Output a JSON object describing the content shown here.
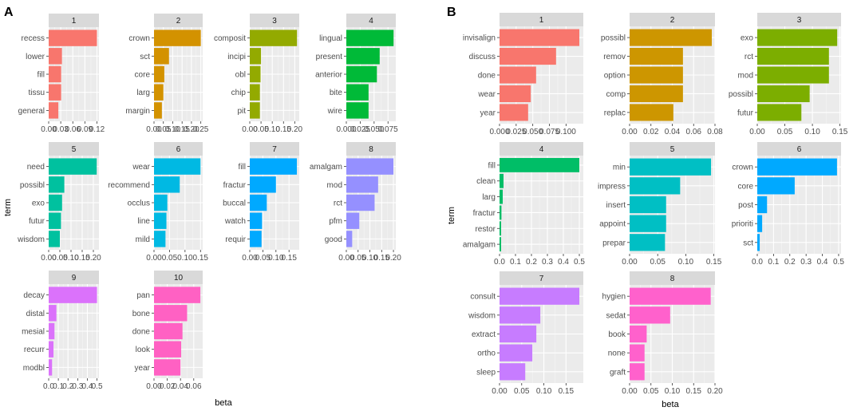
{
  "chart_data": [
    {
      "label": "A",
      "type": "bar",
      "orientation": "horizontal",
      "xlabel": "beta",
      "ylabel": "term",
      "facets": [
        {
          "title": "1",
          "color": "#F8766D",
          "terms": [
            "recess",
            "lower",
            "fill",
            "tissu",
            "general"
          ],
          "values": [
            0.12,
            0.033,
            0.031,
            0.031,
            0.024
          ],
          "xlim": [
            0,
            0.125
          ],
          "ticks": [
            0.0,
            0.03,
            0.06,
            0.09,
            0.12
          ],
          "tick_labels": [
            "0.00",
            "0.03",
            "0.06",
            "0.09",
            "0.12"
          ]
        },
        {
          "title": "2",
          "color": "#D39200",
          "terms": [
            "crown",
            "sct",
            "core",
            "larg",
            "margin"
          ],
          "values": [
            0.25,
            0.08,
            0.055,
            0.05,
            0.042
          ],
          "xlim": [
            0,
            0.26
          ],
          "ticks": [
            0.0,
            0.05,
            0.1,
            0.15,
            0.2,
            0.25
          ],
          "tick_labels": [
            "0.00",
            "0.05",
            "0.10",
            "0.15",
            "0.20",
            "0.25"
          ]
        },
        {
          "title": "3",
          "color": "#93AA00",
          "terms": [
            "composit",
            "incipi",
            "obl",
            "chip",
            "pit"
          ],
          "values": [
            0.21,
            0.05,
            0.048,
            0.045,
            0.045
          ],
          "xlim": [
            0,
            0.22
          ],
          "ticks": [
            0.0,
            0.05,
            0.1,
            0.15,
            0.2
          ],
          "tick_labels": [
            "0.00",
            "0.05",
            "0.10",
            "0.15",
            "0.20"
          ]
        },
        {
          "title": "4",
          "color": "#00BA38",
          "terms": [
            "lingual",
            "present",
            "anterior",
            "bite",
            "wire"
          ],
          "values": [
            0.085,
            0.06,
            0.055,
            0.04,
            0.04
          ],
          "xlim": [
            0,
            0.089
          ],
          "ticks": [
            0.0,
            0.025,
            0.05,
            0.075
          ],
          "tick_labels": [
            "0.000",
            "0.025",
            "0.050",
            "0.075"
          ]
        },
        {
          "title": "5",
          "color": "#00C19F",
          "terms": [
            "need",
            "possibl",
            "exo",
            "futur",
            "wisdom"
          ],
          "values": [
            0.215,
            0.07,
            0.06,
            0.055,
            0.05
          ],
          "xlim": [
            0,
            0.225
          ],
          "ticks": [
            0.0,
            0.05,
            0.1,
            0.15,
            0.2
          ],
          "tick_labels": [
            "0.00",
            "0.05",
            "0.10",
            "0.15",
            "0.20"
          ]
        },
        {
          "title": "6",
          "color": "#00B9E3",
          "terms": [
            "wear",
            "recommend",
            "occlus",
            "line",
            "mild"
          ],
          "values": [
            0.15,
            0.083,
            0.043,
            0.04,
            0.037
          ],
          "xlim": [
            0,
            0.157
          ],
          "ticks": [
            0.0,
            0.05,
            0.1,
            0.15
          ],
          "tick_labels": [
            "0.00",
            "0.05",
            "0.10",
            "0.15"
          ]
        },
        {
          "title": "7",
          "color": "#00A9FF",
          "terms": [
            "fill",
            "fractur",
            "buccal",
            "watch",
            "requir"
          ],
          "values": [
            0.18,
            0.1,
            0.065,
            0.047,
            0.045
          ],
          "xlim": [
            0,
            0.189
          ],
          "ticks": [
            0.0,
            0.05,
            0.1,
            0.15
          ],
          "tick_labels": [
            "0.00",
            "0.05",
            "0.10",
            "0.15"
          ]
        },
        {
          "title": "8",
          "color": "#9590FF",
          "terms": [
            "amalgam",
            "mod",
            "rct",
            "pfm",
            "good"
          ],
          "values": [
            0.2,
            0.135,
            0.12,
            0.055,
            0.025
          ],
          "xlim": [
            0,
            0.21
          ],
          "ticks": [
            0.0,
            0.05,
            0.1,
            0.15,
            0.2
          ],
          "tick_labels": [
            "0.00",
            "0.05",
            "0.10",
            "0.15",
            "0.20"
          ]
        },
        {
          "title": "9",
          "color": "#DB72FB",
          "terms": [
            "decay",
            "distal",
            "mesial",
            "recurr",
            "modbl"
          ],
          "values": [
            0.5,
            0.08,
            0.06,
            0.05,
            0.035
          ],
          "xlim": [
            0,
            0.52
          ],
          "ticks": [
            0.0,
            0.1,
            0.2,
            0.3,
            0.4,
            0.5
          ],
          "tick_labels": [
            "0.0",
            "0.1",
            "0.2",
            "0.3",
            "0.4",
            "0.5"
          ]
        },
        {
          "title": "10",
          "color": "#FF61C3",
          "terms": [
            "pan",
            "bone",
            "done",
            "look",
            "year"
          ],
          "values": [
            0.07,
            0.05,
            0.043,
            0.041,
            0.04
          ],
          "xlim": [
            0,
            0.0735
          ],
          "ticks": [
            0.0,
            0.02,
            0.04,
            0.06
          ],
          "tick_labels": [
            "0.00",
            "0.02",
            "0.04",
            "0.06"
          ]
        }
      ]
    },
    {
      "label": "B",
      "type": "bar",
      "orientation": "horizontal",
      "xlabel": "beta",
      "ylabel": "term",
      "facets": [
        {
          "title": "1",
          "color": "#F8766D",
          "terms": [
            "invisalign",
            "discuss",
            "done",
            "wear",
            "year"
          ],
          "values": [
            0.12,
            0.085,
            0.055,
            0.047,
            0.043
          ],
          "xlim": [
            0,
            0.126
          ],
          "ticks": [
            0.0,
            0.025,
            0.05,
            0.075,
            0.1
          ],
          "tick_labels": [
            "0.000",
            "0.025",
            "0.050",
            "0.075",
            "0.100"
          ]
        },
        {
          "title": "2",
          "color": "#CD9600",
          "terms": [
            "possibl",
            "remov",
            "option",
            "comp",
            "replac"
          ],
          "values": [
            0.077,
            0.05,
            0.05,
            0.05,
            0.041
          ],
          "xlim": [
            0,
            0.08
          ],
          "ticks": [
            0.0,
            0.02,
            0.04,
            0.06,
            0.08
          ],
          "tick_labels": [
            "0.00",
            "0.02",
            "0.04",
            "0.06",
            "0.08"
          ]
        },
        {
          "title": "3",
          "color": "#7CAE00",
          "terms": [
            "exo",
            "rct",
            "mod",
            "possibl",
            "futur"
          ],
          "values": [
            0.145,
            0.13,
            0.13,
            0.095,
            0.08
          ],
          "xlim": [
            0,
            0.152
          ],
          "ticks": [
            0.0,
            0.05,
            0.1,
            0.15
          ],
          "tick_labels": [
            "0.00",
            "0.05",
            "0.10",
            "0.15"
          ]
        },
        {
          "title": "4",
          "color": "#00BE67",
          "terms": [
            "fill",
            "clean",
            "larg",
            "fractur",
            "restor",
            "amalgam"
          ],
          "values": [
            0.5,
            0.025,
            0.02,
            0.012,
            0.01,
            0.01
          ],
          "xlim": [
            0,
            0.525
          ],
          "ticks": [
            0.0,
            0.1,
            0.2,
            0.3,
            0.4,
            0.5
          ],
          "tick_labels": [
            "0.0",
            "0.1",
            "0.2",
            "0.3",
            "0.4",
            "0.5"
          ]
        },
        {
          "title": "5",
          "color": "#00BFC4",
          "terms": [
            "min",
            "impress",
            "insert",
            "appoint",
            "prepar"
          ],
          "values": [
            0.145,
            0.09,
            0.065,
            0.065,
            0.063
          ],
          "xlim": [
            0,
            0.152
          ],
          "ticks": [
            0.0,
            0.05,
            0.1,
            0.15
          ],
          "tick_labels": [
            "0.00",
            "0.05",
            "0.10",
            "0.15"
          ]
        },
        {
          "title": "6",
          "color": "#00A9FF",
          "terms": [
            "crown",
            "core",
            "post",
            "prioriti",
            "sct"
          ],
          "values": [
            0.49,
            0.23,
            0.06,
            0.03,
            0.015
          ],
          "xlim": [
            0,
            0.515
          ],
          "ticks": [
            0.0,
            0.1,
            0.2,
            0.3,
            0.4,
            0.5
          ],
          "tick_labels": [
            "0.0",
            "0.1",
            "0.2",
            "0.3",
            "0.4",
            "0.5"
          ]
        },
        {
          "title": "7",
          "color": "#C77CFF",
          "terms": [
            "consult",
            "wisdom",
            "extract",
            "ortho",
            "sleep"
          ],
          "values": [
            0.18,
            0.092,
            0.083,
            0.074,
            0.058
          ],
          "xlim": [
            0,
            0.189
          ],
          "ticks": [
            0.0,
            0.05,
            0.1,
            0.15
          ],
          "tick_labels": [
            "0.00",
            "0.05",
            "0.10",
            "0.15"
          ]
        },
        {
          "title": "8",
          "color": "#FF61CC",
          "terms": [
            "hygien",
            "sedat",
            "book",
            "none",
            "graft"
          ],
          "values": [
            0.19,
            0.095,
            0.04,
            0.035,
            0.035
          ],
          "xlim": [
            0,
            0.2
          ],
          "ticks": [
            0.0,
            0.05,
            0.1,
            0.15,
            0.2
          ],
          "tick_labels": [
            "0.00",
            "0.05",
            "0.10",
            "0.15",
            "0.20"
          ]
        }
      ]
    }
  ]
}
